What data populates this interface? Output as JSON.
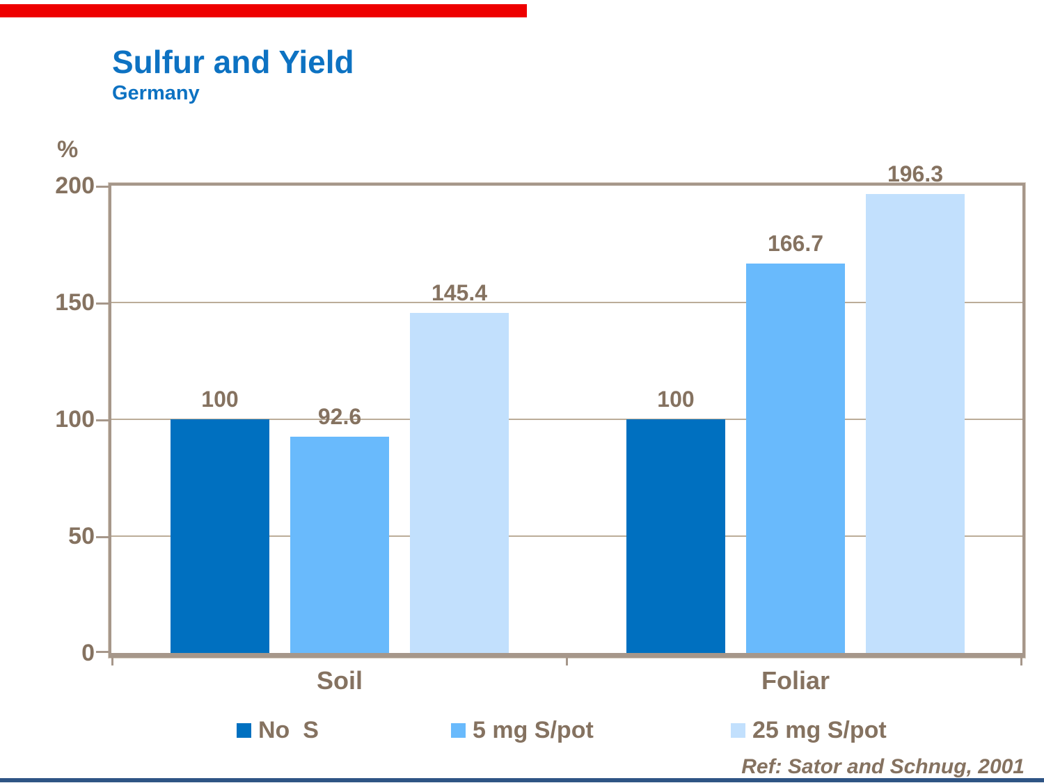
{
  "page": {
    "title": "Sulfur and Yield",
    "subtitle": "Germany",
    "reference": "Ref: Sator and Schnug, 2001"
  },
  "colors": {
    "title_blue": "#0D72C2",
    "label_brown": "#857260",
    "frame_tan": "#A6978A",
    "grid_tan": "#BBAC98",
    "top_accent_red": "#EE0000",
    "bottom_accent_navy": "#2E5484"
  },
  "chart_data": {
    "type": "bar",
    "title": "Sulfur and Yield",
    "subtitle": "Germany",
    "xlabel": "",
    "ylabel": "%",
    "ylim": [
      0,
      200
    ],
    "yticks": [
      200,
      150,
      100,
      50,
      0
    ],
    "grid": true,
    "legend_position": "bottom",
    "value_labels": true,
    "categories": [
      "Soil",
      "Foliar"
    ],
    "series": [
      {
        "name": "No  S",
        "color": "#0070C0",
        "values": [
          100,
          100
        ]
      },
      {
        "name": "5 mg S/pot",
        "color": "#69BAFC",
        "values": [
          92.6,
          166.7
        ]
      },
      {
        "name": "25 mg S/pot",
        "color": "#C2E0FD",
        "values": [
          145.4,
          196.3
        ]
      }
    ]
  }
}
